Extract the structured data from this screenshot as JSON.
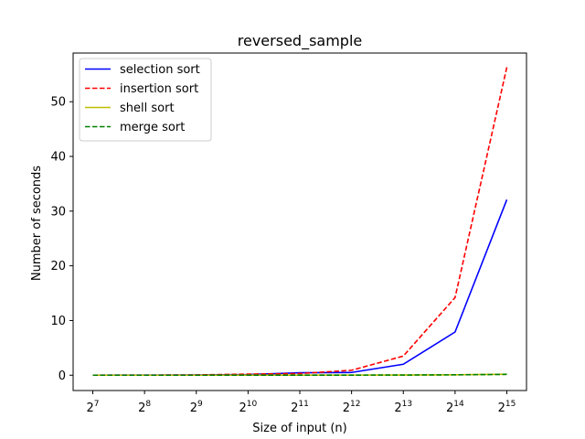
{
  "chart_data": {
    "type": "line",
    "title": "reversed_sample",
    "xlabel": "Size of input (n)",
    "ylabel": "Number of seconds",
    "x_scale": "log2",
    "x": [
      128,
      256,
      512,
      1024,
      2048,
      4096,
      8192,
      16384,
      32768
    ],
    "x_tick_labels": [
      {
        "base": "2",
        "exp": "7"
      },
      {
        "base": "2",
        "exp": "8"
      },
      {
        "base": "2",
        "exp": "9"
      },
      {
        "base": "2",
        "exp": "10"
      },
      {
        "base": "2",
        "exp": "11"
      },
      {
        "base": "2",
        "exp": "12"
      },
      {
        "base": "2",
        "exp": "13"
      },
      {
        "base": "2",
        "exp": "14"
      },
      {
        "base": "2",
        "exp": "15"
      }
    ],
    "ylim": [
      -2.8,
      58.9
    ],
    "y_ticks": [
      0,
      10,
      20,
      30,
      40,
      50
    ],
    "grid": false,
    "legend_position": "top-left",
    "series": [
      {
        "name": "selection sort",
        "color": "#0000ff",
        "style": "solid",
        "values": [
          0.002,
          0.008,
          0.03,
          0.12,
          0.45,
          0.5,
          2.0,
          7.9,
          32.1
        ]
      },
      {
        "name": "insertion sort",
        "color": "#ff0000",
        "style": "dashed",
        "values": [
          0.003,
          0.012,
          0.05,
          0.2,
          0.3,
          0.9,
          3.5,
          14.2,
          56.3
        ]
      },
      {
        "name": "shell sort",
        "color": "#bfbf00",
        "style": "solid",
        "values": [
          0.0005,
          0.001,
          0.002,
          0.005,
          0.01,
          0.02,
          0.04,
          0.08,
          0.18
        ]
      },
      {
        "name": "merge sort",
        "color": "#008000",
        "style": "dashed",
        "values": [
          0.0005,
          0.001,
          0.002,
          0.004,
          0.008,
          0.016,
          0.035,
          0.07,
          0.15
        ]
      }
    ]
  }
}
